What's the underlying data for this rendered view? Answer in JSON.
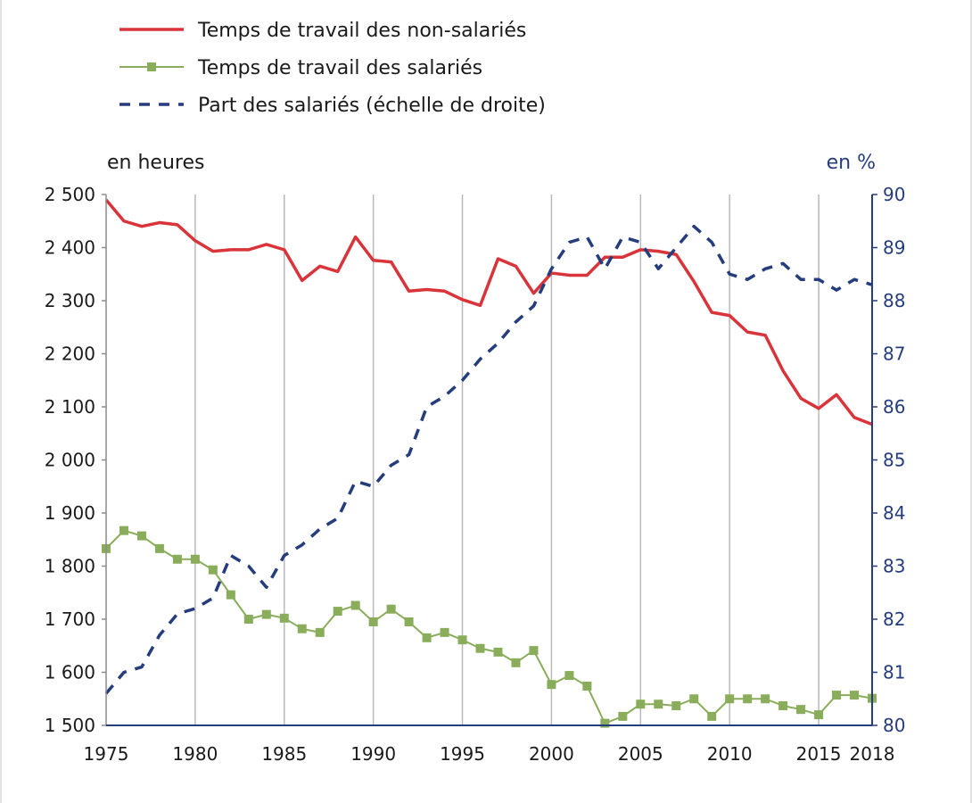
{
  "chart_data": {
    "type": "line",
    "legend": [
      {
        "label": "Temps de travail des non-salariés",
        "color": "#d9343a",
        "style": "solid"
      },
      {
        "label": "Temps de travail des salariés",
        "color": "#8aad5b",
        "style": "solid-square-markers"
      },
      {
        "label": "Part des salariés (échelle de droite)",
        "color": "#253c7d",
        "style": "dashed"
      }
    ],
    "legend_placement": "top-left",
    "y_left_label": "en heures",
    "y_right_label": "en %",
    "y_left_range": [
      1500,
      2500
    ],
    "y_right_range": [
      80,
      90
    ],
    "y_left_ticks": [
      "2 500",
      "2 400",
      "2 300",
      "2 200",
      "2 100",
      "2 000",
      "1 900",
      "1 800",
      "1 700",
      "1 600",
      "1 500"
    ],
    "y_right_ticks": [
      "90",
      "89",
      "88",
      "87",
      "86",
      "85",
      "84",
      "83",
      "82",
      "81",
      "80"
    ],
    "x_range": [
      1975,
      2018
    ],
    "x_ticks": [
      "1975",
      "1980",
      "1985",
      "1990",
      "1995",
      "2000",
      "2005",
      "2010",
      "2015",
      "2018"
    ],
    "grid": "vertical",
    "x": [
      1975,
      1976,
      1977,
      1978,
      1979,
      1980,
      1981,
      1982,
      1983,
      1984,
      1985,
      1986,
      1987,
      1988,
      1989,
      1990,
      1991,
      1992,
      1993,
      1994,
      1995,
      1996,
      1997,
      1998,
      1999,
      2000,
      2001,
      2002,
      2003,
      2004,
      2005,
      2006,
      2007,
      2008,
      2009,
      2010,
      2011,
      2012,
      2013,
      2014,
      2015,
      2016,
      2017,
      2018
    ],
    "series": [
      {
        "name": "Temps de travail des non-salariés",
        "axis": "left",
        "values": [
          2490,
          2450,
          2440,
          2447,
          2443,
          2413,
          2393,
          2396,
          2396,
          2406,
          2396,
          2338,
          2365,
          2355,
          2420,
          2376,
          2373,
          2318,
          2321,
          2318,
          2302,
          2291,
          2379,
          2365,
          2314,
          2352,
          2348,
          2348,
          2382,
          2382,
          2396,
          2393,
          2387,
          2336,
          2278,
          2272,
          2241,
          2235,
          2168,
          2116,
          2097,
          2123,
          2080,
          2067
        ]
      },
      {
        "name": "Temps de travail des salariés",
        "axis": "left",
        "values": [
          1833,
          1867,
          1857,
          1833,
          1813,
          1813,
          1793,
          1746,
          1700,
          1709,
          1702,
          1682,
          1675,
          1715,
          1726,
          1695,
          1719,
          1695,
          1665,
          1675,
          1661,
          1645,
          1638,
          1618,
          1641,
          1577,
          1594,
          1574,
          1504,
          1517,
          1540,
          1540,
          1537,
          1550,
          1517,
          1550,
          1550,
          1550,
          1537,
          1530,
          1520,
          1557,
          1557,
          1551
        ]
      },
      {
        "name": "Part des salariés (échelle de droite)",
        "axis": "right",
        "values": [
          80.6,
          81.0,
          81.1,
          81.7,
          82.1,
          82.2,
          82.4,
          83.2,
          83.0,
          82.6,
          83.2,
          83.4,
          83.7,
          83.9,
          84.6,
          84.5,
          84.9,
          85.1,
          86.0,
          86.2,
          86.5,
          86.9,
          87.2,
          87.6,
          87.9,
          88.6,
          89.1,
          89.2,
          88.6,
          89.2,
          89.1,
          88.6,
          89.0,
          89.4,
          89.1,
          88.5,
          88.4,
          88.6,
          88.7,
          88.4,
          88.4,
          88.2,
          88.4,
          88.3
        ]
      }
    ]
  }
}
